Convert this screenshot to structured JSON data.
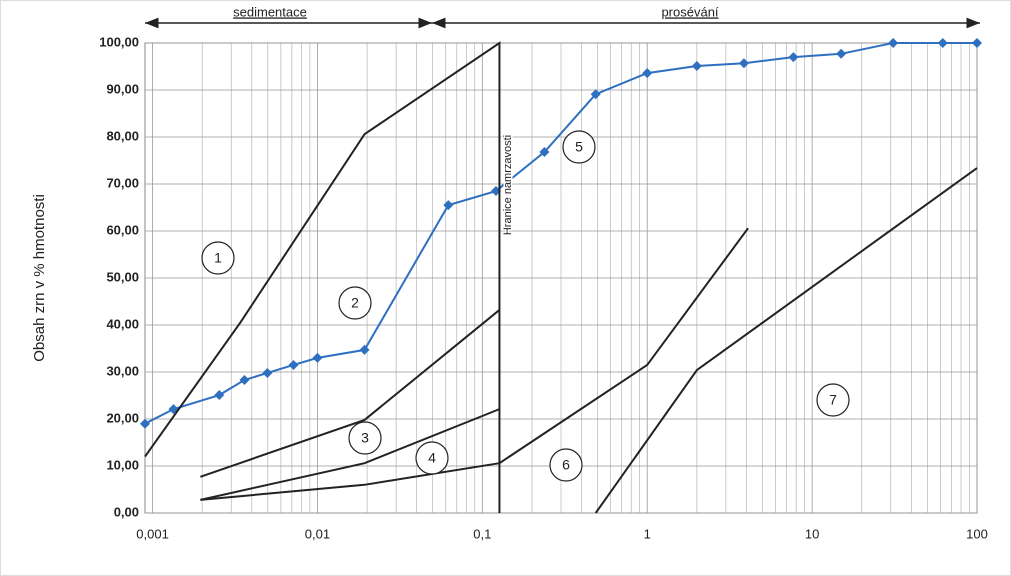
{
  "chart_data": {
    "type": "line",
    "y_label": "Obsah zrn v % hmotnosti",
    "xscale": "log",
    "xlim": [
      0.0009,
      100
    ],
    "ylim": [
      0,
      100
    ],
    "xticks": [
      {
        "value": 0.001,
        "label": "0,001"
      },
      {
        "value": 0.01,
        "label": "0,01"
      },
      {
        "value": 0.1,
        "label": "0,1"
      },
      1,
      10,
      100
    ],
    "yticks": [
      {
        "value": 0,
        "label": "0,00"
      },
      {
        "value": 10,
        "label": "10,00"
      },
      {
        "value": 20,
        "label": "20,00"
      },
      {
        "value": 30,
        "label": "30,00"
      },
      {
        "value": 40,
        "label": "40,00"
      },
      {
        "value": 50,
        "label": "50,00"
      },
      {
        "value": 60,
        "label": "60,00"
      },
      {
        "value": 70,
        "label": "70,00"
      },
      {
        "value": 80,
        "label": "80,00"
      },
      {
        "value": 90,
        "label": "90,00"
      },
      {
        "value": 100,
        "label": "100,00"
      }
    ],
    "grid": true,
    "series": [
      {
        "color": "#2e6fc0",
        "markers": true,
        "x": [
          0.0009,
          0.00134,
          0.00254,
          0.00361,
          0.00497,
          0.00716,
          0.01,
          0.0193,
          0.0622,
          0.121,
          0.238,
          0.487,
          1,
          2,
          3.86,
          7.7,
          15,
          31,
          62,
          100
        ],
        "values": [
          19,
          22.1,
          25.1,
          28.3,
          29.8,
          31.5,
          33,
          34.7,
          65.5,
          68.5,
          76.8,
          89.1,
          93.6,
          95.1,
          95.7,
          97,
          97.7,
          100,
          100,
          100
        ]
      },
      {
        "color": "#222",
        "x": [
          0.0009,
          0.00342,
          0.0193,
          0.127,
          0.127
        ],
        "values": [
          12,
          40.6,
          80.6,
          100,
          0
        ]
      },
      {
        "color": "#222",
        "x": [
          0.00195,
          0.0193,
          0.127
        ],
        "values": [
          7.7,
          19.8,
          43.2
        ]
      },
      {
        "color": "#222",
        "x": [
          0.00195,
          0.0193,
          0.127
        ],
        "values": [
          2.8,
          10.6,
          22.1
        ]
      },
      {
        "color": "#222",
        "x": [
          0.00195,
          0.0193,
          0.127
        ],
        "values": [
          2.8,
          6,
          10.6
        ]
      },
      {
        "color": "#222",
        "x": [
          0.127,
          1,
          4.09
        ],
        "values": [
          10.6,
          31.5,
          60.6
        ]
      },
      {
        "color": "#222",
        "x": [
          0.487,
          2,
          100
        ],
        "values": [
          0,
          30.4,
          73.4
        ]
      }
    ],
    "annotations": [
      "1",
      "2",
      "3",
      "4",
      "5",
      "6",
      "7"
    ],
    "boundary_label": "Hranice namrzavosti",
    "ranges": [
      "sedimentace",
      "prosévání"
    ]
  }
}
